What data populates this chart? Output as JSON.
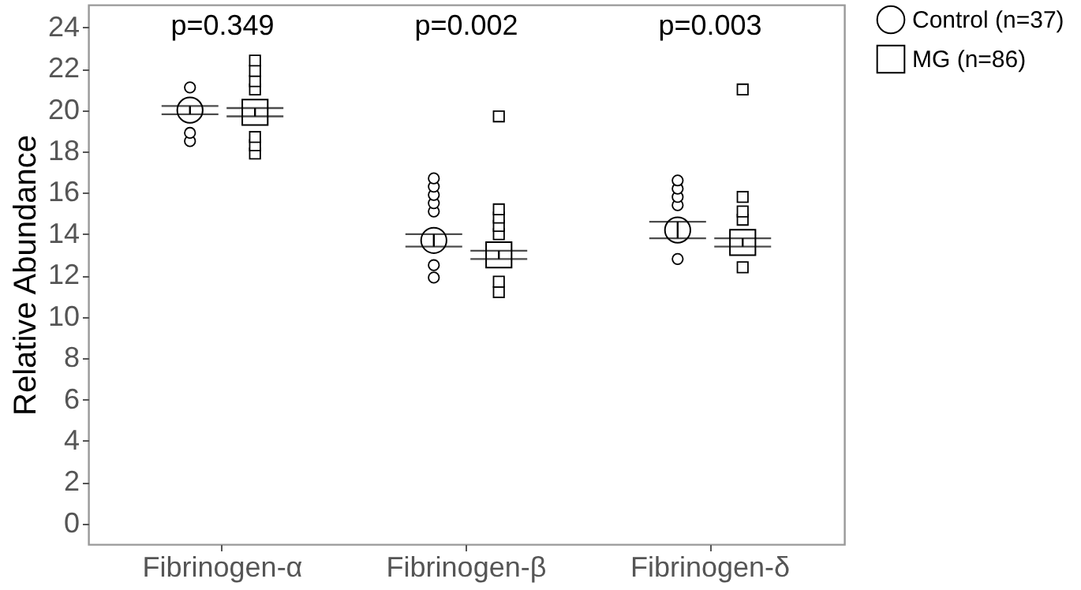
{
  "chart_data": {
    "type": "scatter",
    "ylabel": "Relative Abundance",
    "categories": [
      "Fibrinogen-α",
      "Fibrinogen-β",
      "Fibrinogen-δ"
    ],
    "ylim": [
      -1,
      25.1
    ],
    "yticks": [
      0,
      2,
      4,
      6,
      8,
      10,
      12,
      14,
      16,
      18,
      20,
      22,
      24
    ],
    "grid": false,
    "legend": "right",
    "series": [
      {
        "type": "scatter",
        "marker": "circle",
        "color": "#000000",
        "x": [
          "Fibrinogen-α",
          "Fibrinogen-α",
          "Fibrinogen-α",
          "Fibrinogen-β",
          "Fibrinogen-β",
          "Fibrinogen-β",
          "Fibrinogen-β",
          "Fibrinogen-β",
          "Fibrinogen-β",
          "Fibrinogen-β",
          "Fibrinogen-δ",
          "Fibrinogen-δ",
          "Fibrinogen-δ",
          "Fibrinogen-δ",
          "Fibrinogen-δ"
        ],
        "values": [
          18.5,
          18.9,
          21.1,
          11.9,
          12.5,
          15.1,
          15.5,
          15.9,
          16.3,
          16.7,
          12.8,
          15.4,
          15.8,
          16.2,
          16.6
        ]
      },
      {
        "type": "scatter",
        "marker": "square",
        "color": "#000000",
        "x": [
          "Fibrinogen-α",
          "Fibrinogen-α",
          "Fibrinogen-α",
          "Fibrinogen-α",
          "Fibrinogen-α",
          "Fibrinogen-α",
          "Fibrinogen-α",
          "Fibrinogen-β",
          "Fibrinogen-β",
          "Fibrinogen-β",
          "Fibrinogen-β",
          "Fibrinogen-β",
          "Fibrinogen-β",
          "Fibrinogen-β",
          "Fibrinogen-δ",
          "Fibrinogen-δ",
          "Fibrinogen-δ",
          "Fibrinogen-δ",
          "Fibrinogen-δ"
        ],
        "values": [
          17.9,
          18.3,
          18.7,
          21.0,
          21.4,
          21.9,
          22.4,
          11.2,
          11.7,
          14.0,
          14.4,
          14.8,
          15.2,
          19.7,
          12.4,
          14.7,
          15.1,
          15.8,
          21.0
        ]
      },
      {
        "name": "Control (n=37)",
        "type": "scatter",
        "marker": "circle",
        "color": "#000000",
        "x": [
          "Fibrinogen-α",
          "Fibrinogen-β",
          "Fibrinogen-δ"
        ],
        "values": [
          20.0,
          13.7,
          14.2
        ],
        "errors": [
          0.2,
          0.3,
          0.4
        ]
      },
      {
        "name": "MG (n=86)",
        "type": "scatter",
        "marker": "square",
        "color": "#000000",
        "x": [
          "Fibrinogen-α",
          "Fibrinogen-β",
          "Fibrinogen-δ"
        ],
        "values": [
          19.9,
          13.0,
          13.6
        ],
        "errors": [
          0.2,
          0.2,
          0.2
        ]
      }
    ],
    "annotations": [
      "p=0.349",
      "p=0.002",
      "p=0.003"
    ]
  }
}
